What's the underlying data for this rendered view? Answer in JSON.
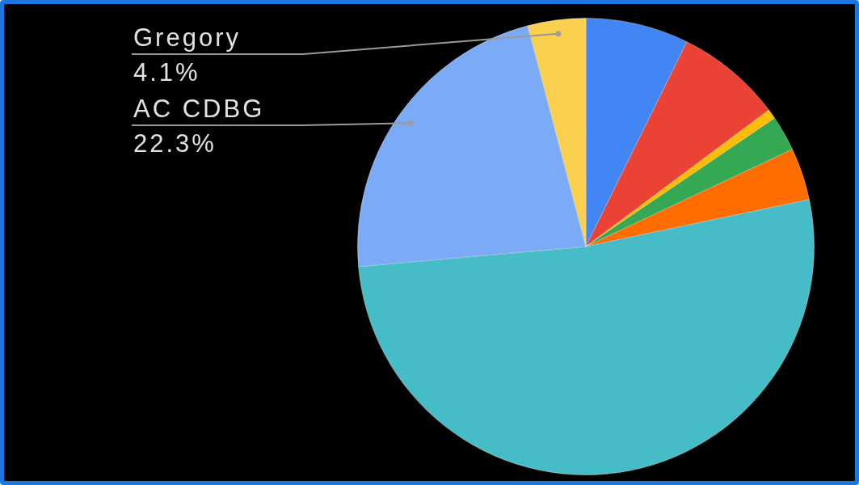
{
  "chart_data": {
    "type": "pie",
    "categories": [
      null,
      null,
      null,
      null,
      null,
      null,
      "AC CDBG",
      "Gregory"
    ],
    "values": [
      7.3,
      7.5,
      0.7,
      2.5,
      3.7,
      51.9,
      22.3,
      4.1
    ],
    "colors": [
      "#4285f4",
      "#ea4335",
      "#fbbc04",
      "#34a853",
      "#ff6d01",
      "#46bdc6",
      "#7baaf7",
      "#fcd04f"
    ],
    "value_labels": [
      null,
      null,
      null,
      null,
      null,
      null,
      "22.3%",
      "4.1%"
    ],
    "legend": false
  }
}
